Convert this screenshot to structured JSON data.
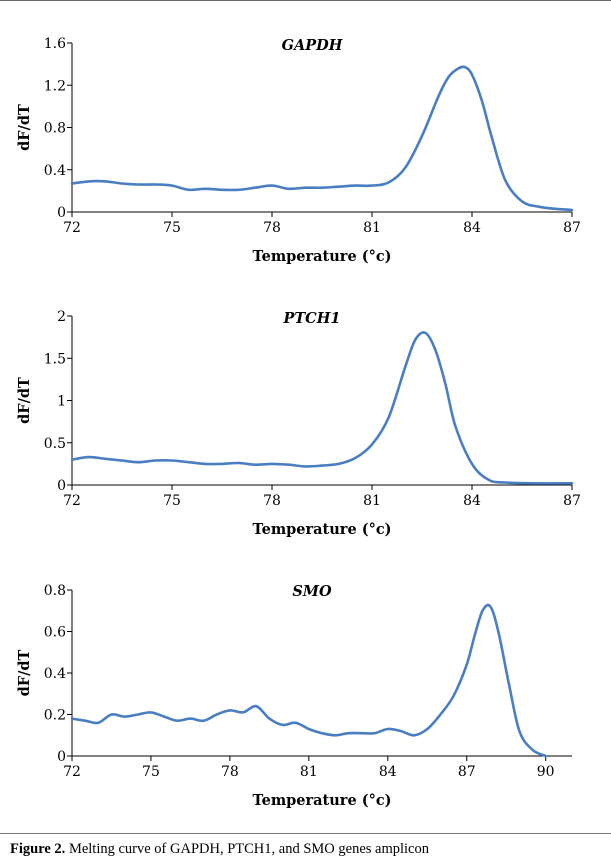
{
  "figure": {
    "label": "Figure 2.",
    "text": "Melting curve of GAPDH, PTCH1, and SMO genes amplicon"
  },
  "chart_data": [
    {
      "type": "line",
      "title": "GAPDH",
      "xlabel": "Temperature (°c)",
      "ylabel": "dF/dT",
      "xlim": [
        72,
        87
      ],
      "ylim": [
        0,
        1.6
      ],
      "xticks": [
        "72",
        "75",
        "78",
        "81",
        "84",
        "87"
      ],
      "yticks": [
        "0",
        "0.4",
        "0.8",
        "1.2",
        "1.6"
      ],
      "color": "#4A7EC2",
      "series": [
        {
          "x": [
            72,
            72.5,
            73,
            73.5,
            74,
            74.5,
            75,
            75.5,
            76,
            76.5,
            77,
            77.5,
            78,
            78.5,
            79,
            79.5,
            80,
            80.5,
            81,
            81.5,
            82,
            82.5,
            83,
            83.3,
            83.6,
            83.8,
            84,
            84.3,
            84.6,
            85,
            85.5,
            86,
            86.5,
            87
          ],
          "y": [
            0.27,
            0.29,
            0.29,
            0.27,
            0.26,
            0.26,
            0.25,
            0.21,
            0.22,
            0.21,
            0.21,
            0.23,
            0.25,
            0.22,
            0.23,
            0.23,
            0.24,
            0.25,
            0.25,
            0.28,
            0.42,
            0.72,
            1.1,
            1.28,
            1.36,
            1.37,
            1.3,
            1.05,
            0.7,
            0.3,
            0.1,
            0.05,
            0.03,
            0.02
          ]
        }
      ]
    },
    {
      "type": "line",
      "title": "PTCH1",
      "xlabel": "Temperature (°c)",
      "ylabel": "dF/dT",
      "xlim": [
        72,
        87
      ],
      "ylim": [
        0,
        2
      ],
      "xticks": [
        "72",
        "75",
        "78",
        "81",
        "84",
        "87"
      ],
      "yticks": [
        "0",
        "0.5",
        "1",
        "1.5",
        "2"
      ],
      "color": "#4A7EC2",
      "series": [
        {
          "x": [
            72,
            72.5,
            73,
            73.5,
            74,
            74.5,
            75,
            75.5,
            76,
            76.5,
            77,
            77.5,
            78,
            78.5,
            79,
            79.5,
            80,
            80.5,
            81,
            81.5,
            82,
            82.3,
            82.6,
            82.9,
            83.2,
            83.5,
            84,
            84.5,
            85,
            86,
            87
          ],
          "y": [
            0.3,
            0.33,
            0.31,
            0.29,
            0.27,
            0.29,
            0.29,
            0.27,
            0.25,
            0.25,
            0.26,
            0.24,
            0.25,
            0.24,
            0.22,
            0.23,
            0.25,
            0.32,
            0.48,
            0.8,
            1.4,
            1.72,
            1.8,
            1.6,
            1.2,
            0.7,
            0.25,
            0.06,
            0.03,
            0.02,
            0.02
          ]
        }
      ]
    },
    {
      "type": "line",
      "title": "SMO",
      "xlabel": "Temperature (°c)",
      "ylabel": "dF/dT",
      "xlim": [
        72,
        91
      ],
      "ylim": [
        0,
        0.8
      ],
      "xticks": [
        "72",
        "75",
        "78",
        "81",
        "84",
        "87",
        "90"
      ],
      "yticks": [
        "0",
        "0.2",
        "0.4",
        "0.6",
        "0.8"
      ],
      "color": "#4A7EC2",
      "series": [
        {
          "x": [
            72,
            72.5,
            73,
            73.5,
            74,
            74.5,
            75,
            75.5,
            76,
            76.5,
            77,
            77.5,
            78,
            78.5,
            79,
            79.5,
            80,
            80.5,
            81,
            81.5,
            82,
            82.5,
            83,
            83.5,
            84,
            84.5,
            85,
            85.5,
            86,
            86.5,
            87,
            87.3,
            87.6,
            87.9,
            88.2,
            88.6,
            89,
            89.5,
            90
          ],
          "y": [
            0.18,
            0.17,
            0.16,
            0.2,
            0.19,
            0.2,
            0.21,
            0.19,
            0.17,
            0.18,
            0.17,
            0.2,
            0.22,
            0.21,
            0.24,
            0.18,
            0.15,
            0.16,
            0.13,
            0.11,
            0.1,
            0.11,
            0.11,
            0.11,
            0.13,
            0.12,
            0.1,
            0.13,
            0.2,
            0.29,
            0.44,
            0.58,
            0.7,
            0.72,
            0.6,
            0.35,
            0.12,
            0.03,
            0.0
          ]
        }
      ]
    }
  ]
}
